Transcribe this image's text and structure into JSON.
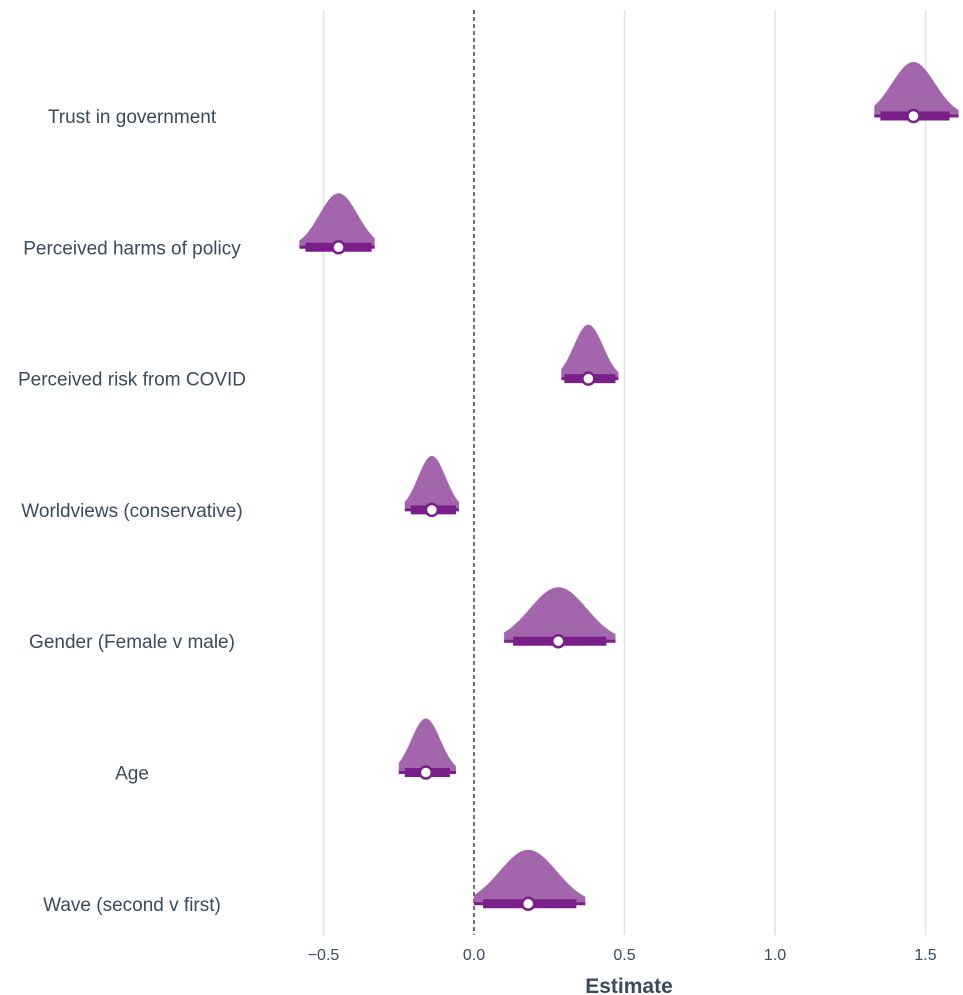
{
  "chart_data": {
    "type": "halfeye",
    "xlabel": "Estimate",
    "ylabel": "",
    "title": "",
    "xlim": [
      -0.5,
      1.5
    ],
    "xticks": [
      -0.5,
      0.0,
      0.5,
      1.0,
      1.5
    ],
    "xtick_labels": [
      "−0.5",
      "0.0",
      "0.5",
      "1.0",
      "1.5"
    ],
    "reference_line": 0.0,
    "grid": "vertical major",
    "color": "#8e3f99",
    "colors": {
      "density_fill": "#9b59a6",
      "interval": "#7a1f8a",
      "point_fill": "#ffffff",
      "reference_line": "#222222",
      "grid": "#e3e3e3",
      "text": "#3b4a5c"
    },
    "rows": [
      {
        "label": "Trust in government",
        "estimate": 1.46,
        "interval_66": [
          1.35,
          1.58
        ],
        "interval_95": [
          1.33,
          1.61
        ]
      },
      {
        "label": "Perceived harms of policy",
        "estimate": -0.45,
        "interval_66": [
          -0.56,
          -0.34
        ],
        "interval_95": [
          -0.58,
          -0.33
        ]
      },
      {
        "label": "Perceived risk from COVID",
        "estimate": 0.38,
        "interval_66": [
          0.3,
          0.47
        ],
        "interval_95": [
          0.29,
          0.48
        ]
      },
      {
        "label": "Worldviews (conservative)",
        "estimate": -0.14,
        "interval_66": [
          -0.21,
          -0.06
        ],
        "interval_95": [
          -0.23,
          -0.05
        ]
      },
      {
        "label": "Gender (Female v male)",
        "estimate": 0.28,
        "interval_66": [
          0.13,
          0.44
        ],
        "interval_95": [
          0.1,
          0.47
        ]
      },
      {
        "label": "Age",
        "estimate": -0.16,
        "interval_66": [
          -0.23,
          -0.08
        ],
        "interval_95": [
          -0.25,
          -0.06
        ]
      },
      {
        "label": "Wave (second v first)",
        "estimate": 0.18,
        "interval_66": [
          0.03,
          0.34
        ],
        "interval_95": [
          0.0,
          0.37
        ]
      }
    ]
  }
}
